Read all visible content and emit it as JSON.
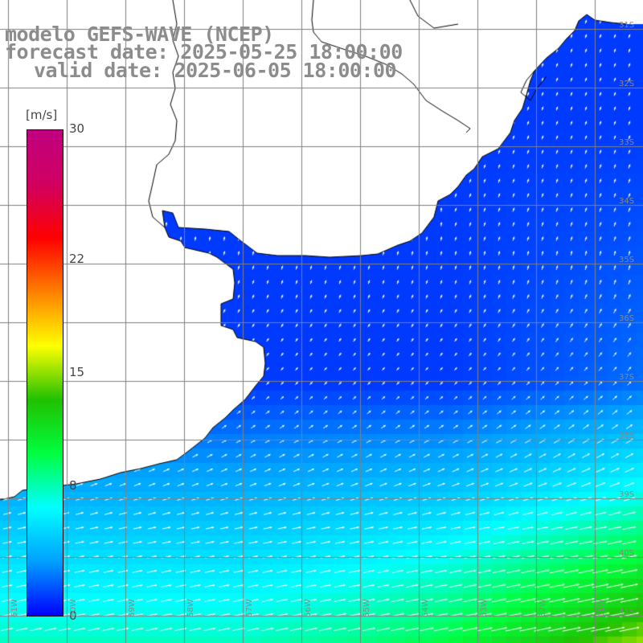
{
  "titles": {
    "line1": "modelo GEFS-WAVE (NCEP)",
    "line2": "forecast date: 2025-05-25 18:00:00",
    "line3": "valid date: 2025-06-05 18:00:00"
  },
  "colorbar": {
    "unit": "[m/s]",
    "min": 0,
    "max": 30,
    "ticks": [
      {
        "value": 0,
        "label": "0"
      },
      {
        "value": 8,
        "label": "8"
      },
      {
        "value": 15,
        "label": "15"
      },
      {
        "value": 22,
        "label": "22"
      },
      {
        "value": 30,
        "label": "30"
      }
    ],
    "gradient": [
      "#0000ff",
      "#00a0ff",
      "#00ffff",
      "#00ff40",
      "#20c000",
      "#ffff00",
      "#ff8000",
      "#ff0000",
      "#d00060",
      "#c00080"
    ]
  },
  "latitude_labels": [
    "31S",
    "32S",
    "33S",
    "34S",
    "35S",
    "36S",
    "37S",
    "38S",
    "39S",
    "40S",
    "41S"
  ],
  "longitude_labels": [
    "61W",
    "60W",
    "59W",
    "58W",
    "57W",
    "56W",
    "55W",
    "54W",
    "53W",
    "52W",
    "51W"
  ],
  "colors": {
    "land": "#ffffff",
    "grid": "#808080",
    "coast": "#000000",
    "title": "#8c8c8c",
    "arrows": "#ffffff"
  }
}
